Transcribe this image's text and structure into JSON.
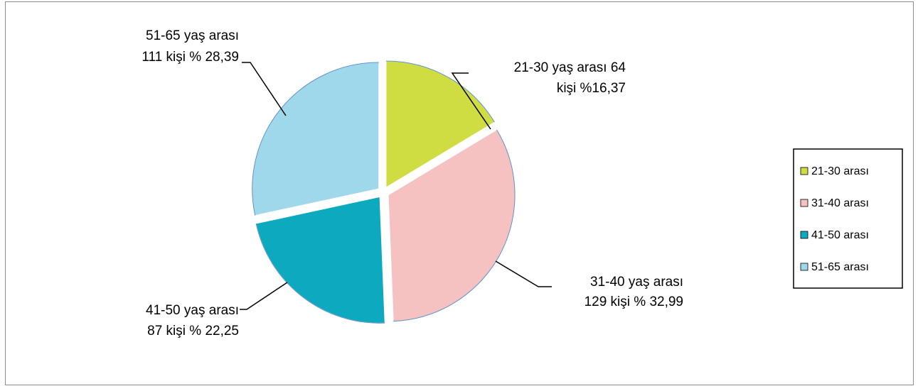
{
  "chart_data": {
    "type": "pie",
    "categories": [
      "21-30 arası",
      "31-40 arası",
      "41-50 arası",
      "51-65 arası"
    ],
    "values": [
      64,
      129,
      87,
      111
    ],
    "percentages": [
      16.37,
      32.99,
      22.25,
      28.39
    ],
    "colors": [
      "#cfdc42",
      "#f6c1c1",
      "#0da9bf",
      "#9ed8ea"
    ],
    "data_labels": [
      [
        "21-30 yaş arası 64",
        "kişi %16,37"
      ],
      [
        "31-40 yaş arası",
        "129 kişi % 32,99"
      ],
      [
        "41-50 yaş arası",
        "87 kişi % 22,25"
      ],
      [
        "51-65 yaş arası",
        "111 kişi % 28,39"
      ]
    ],
    "legend": {
      "position": "right",
      "entries": [
        "21-30 arası",
        "31-40 arası",
        "41-50 arası",
        "51-65 arası"
      ]
    },
    "exploded": true,
    "start_angle": "top, clockwise"
  }
}
